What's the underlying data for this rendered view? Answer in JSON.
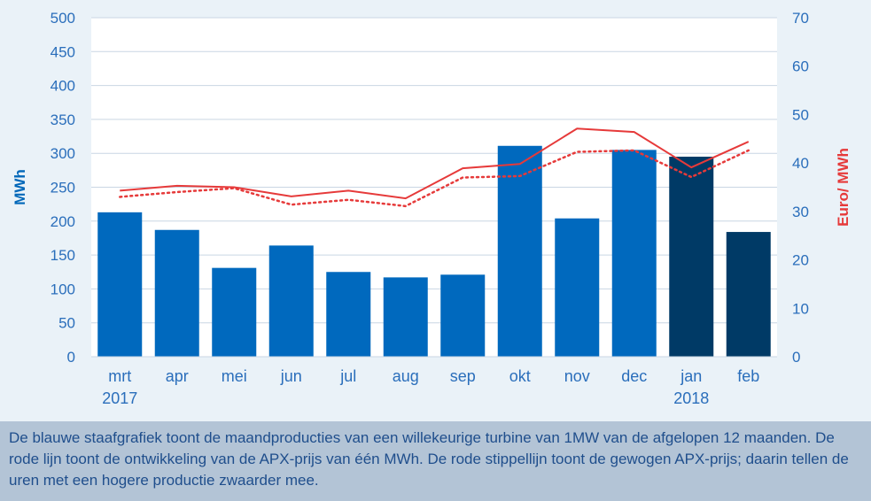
{
  "chart_data": {
    "type": "bar",
    "categories": [
      "mrt",
      "apr",
      "mei",
      "jun",
      "jul",
      "aug",
      "sep",
      "okt",
      "nov",
      "dec",
      "jan",
      "feb"
    ],
    "year_labels": [
      {
        "category": "mrt",
        "label": "2017"
      },
      {
        "category": "jan",
        "label": "2018"
      }
    ],
    "series": [
      {
        "kind": "bar",
        "axis": "left",
        "values": [
          213,
          187,
          131,
          164,
          125,
          117,
          121,
          311,
          204,
          305,
          295,
          184
        ],
        "colors": [
          "#0069be",
          "#0069be",
          "#0069be",
          "#0069be",
          "#0069be",
          "#0069be",
          "#0069be",
          "#0069be",
          "#0069be",
          "#0069be",
          "#003a66",
          "#003a66"
        ]
      },
      {
        "kind": "line",
        "axis": "right",
        "style": "solid",
        "color": "#e63a3a",
        "values": [
          34.3,
          35.3,
          35.0,
          33.1,
          34.3,
          32.7,
          38.9,
          39.8,
          47.1,
          46.4,
          39.1,
          44.4
        ]
      },
      {
        "kind": "line",
        "axis": "right",
        "style": "dotted",
        "color": "#e63a3a",
        "values": [
          33.0,
          34.0,
          34.8,
          31.4,
          32.4,
          31.1,
          37.0,
          37.3,
          42.3,
          42.6,
          37.1,
          42.6
        ]
      }
    ],
    "ylabel": "MWh",
    "ylim": [
      0,
      500
    ],
    "yticks": [
      "0",
      "50",
      "100",
      "150",
      "200",
      "250",
      "300",
      "350",
      "400",
      "450",
      "500"
    ],
    "y2label": "Euro/ MWh",
    "y2lim": [
      0,
      70
    ],
    "y2ticks": [
      "0",
      "10",
      "20",
      "30",
      "40",
      "50",
      "60",
      "70"
    ],
    "grid": true
  },
  "caption": "De blauwe staafgrafiek toont de maandproducties van een willekeurige turbine van 1MW van de afgelopen 12 maanden. De rode lijn toont de ontwikkeling van de APX-prijs van één MWh. De rode stippellijn toont de gewogen APX-prijs; daarin tellen de uren met een hogere productie zwaarder mee."
}
